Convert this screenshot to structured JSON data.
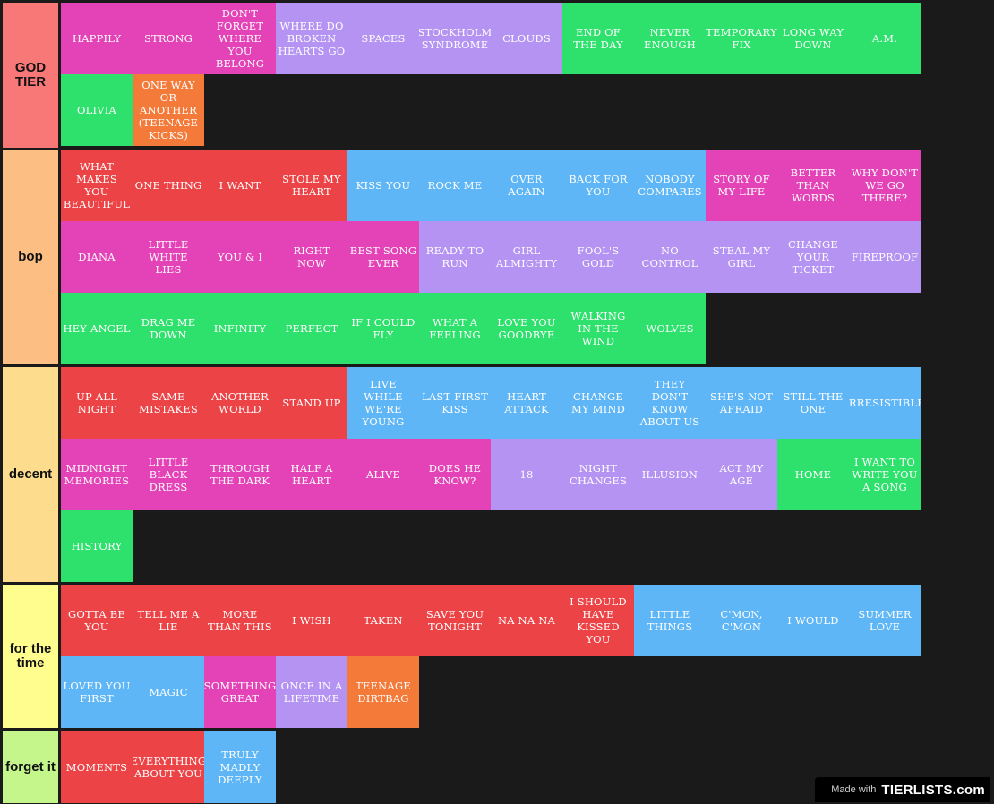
{
  "tiers": [
    {
      "label": "GOD TIER",
      "color": "#f87777",
      "items": [
        {
          "text": "HAPPILY",
          "color": "pink"
        },
        {
          "text": "STRONG",
          "color": "pink"
        },
        {
          "text": "DON'T FORGET WHERE YOU BELONG",
          "color": "pink"
        },
        {
          "text": "WHERE DO BROKEN HEARTS GO",
          "color": "purple"
        },
        {
          "text": "SPACES",
          "color": "purple"
        },
        {
          "text": "STOCKHOLM SYNDROME",
          "color": "purple"
        },
        {
          "text": "CLOUDS",
          "color": "purple"
        },
        {
          "text": "END OF THE DAY",
          "color": "green"
        },
        {
          "text": "NEVER ENOUGH",
          "color": "green"
        },
        {
          "text": "TEMPORARY FIX",
          "color": "green"
        },
        {
          "text": "LONG WAY DOWN",
          "color": "green"
        },
        {
          "text": "A.M.",
          "color": "green"
        },
        {
          "text": "OLIVIA",
          "color": "green"
        },
        {
          "text": "ONE WAY OR ANOTHER (TEENAGE KICKS)",
          "color": "orange"
        }
      ]
    },
    {
      "label": "bop",
      "color": "#fcbe82",
      "items": [
        {
          "text": "WHAT MAKES YOU BEAUTIFUL",
          "color": "red"
        },
        {
          "text": "ONE THING",
          "color": "red"
        },
        {
          "text": "I WANT",
          "color": "red"
        },
        {
          "text": "STOLE MY HEART",
          "color": "red"
        },
        {
          "text": "KISS YOU",
          "color": "blue"
        },
        {
          "text": "ROCK ME",
          "color": "blue"
        },
        {
          "text": "OVER AGAIN",
          "color": "blue"
        },
        {
          "text": "BACK FOR YOU",
          "color": "blue"
        },
        {
          "text": "NOBODY COMPARES",
          "color": "blue"
        },
        {
          "text": "STORY OF MY LIFE",
          "color": "pink"
        },
        {
          "text": "BETTER THAN WORDS",
          "color": "pink"
        },
        {
          "text": "WHY DON'T WE GO THERE?",
          "color": "pink"
        },
        {
          "text": "DIANA",
          "color": "pink"
        },
        {
          "text": "LITTLE WHITE LIES",
          "color": "pink"
        },
        {
          "text": "YOU & I",
          "color": "pink"
        },
        {
          "text": "RIGHT NOW",
          "color": "pink"
        },
        {
          "text": "BEST SONG EVER",
          "color": "pink"
        },
        {
          "text": "READY TO RUN",
          "color": "purple"
        },
        {
          "text": "GIRL ALMIGHTY",
          "color": "purple"
        },
        {
          "text": "FOOL'S GOLD",
          "color": "purple"
        },
        {
          "text": "NO CONTROL",
          "color": "purple"
        },
        {
          "text": "STEAL MY GIRL",
          "color": "purple"
        },
        {
          "text": "CHANGE YOUR TICKET",
          "color": "purple"
        },
        {
          "text": "FIREPROOF",
          "color": "purple"
        },
        {
          "text": "HEY ANGEL",
          "color": "green"
        },
        {
          "text": "DRAG ME DOWN",
          "color": "green"
        },
        {
          "text": "INFINITY",
          "color": "green"
        },
        {
          "text": "PERFECT",
          "color": "green"
        },
        {
          "text": "IF I COULD FLY",
          "color": "green"
        },
        {
          "text": "WHAT A FEELING",
          "color": "green"
        },
        {
          "text": "LOVE YOU GOODBYE",
          "color": "green"
        },
        {
          "text": "WALKING IN THE WIND",
          "color": "green"
        },
        {
          "text": "WOLVES",
          "color": "green"
        }
      ]
    },
    {
      "label": "decent",
      "color": "#fddd8d",
      "items": [
        {
          "text": "UP ALL NIGHT",
          "color": "red"
        },
        {
          "text": "SAME MISTAKES",
          "color": "red"
        },
        {
          "text": "ANOTHER WORLD",
          "color": "red"
        },
        {
          "text": "STAND UP",
          "color": "red"
        },
        {
          "text": "LIVE WHILE WE'RE YOUNG",
          "color": "blue"
        },
        {
          "text": "LAST FIRST KISS",
          "color": "blue"
        },
        {
          "text": "HEART ATTACK",
          "color": "blue"
        },
        {
          "text": "CHANGE MY MIND",
          "color": "blue"
        },
        {
          "text": "THEY DON'T KNOW ABOUT US",
          "color": "blue"
        },
        {
          "text": "SHE'S NOT AFRAID",
          "color": "blue"
        },
        {
          "text": "STILL THE ONE",
          "color": "blue"
        },
        {
          "text": "IRRESISTIBLE",
          "color": "blue"
        },
        {
          "text": "MIDNIGHT MEMORIES",
          "color": "pink"
        },
        {
          "text": "LITTLE BLACK DRESS",
          "color": "pink"
        },
        {
          "text": "THROUGH THE DARK",
          "color": "pink"
        },
        {
          "text": "HALF A HEART",
          "color": "pink"
        },
        {
          "text": "ALIVE",
          "color": "pink"
        },
        {
          "text": "DOES HE KNOW?",
          "color": "pink"
        },
        {
          "text": "18",
          "color": "purple"
        },
        {
          "text": "NIGHT CHANGES",
          "color": "purple"
        },
        {
          "text": "ILLUSION",
          "color": "purple"
        },
        {
          "text": "ACT MY AGE",
          "color": "purple"
        },
        {
          "text": "HOME",
          "color": "green"
        },
        {
          "text": "I WANT TO WRITE YOU A SONG",
          "color": "green"
        },
        {
          "text": "HISTORY",
          "color": "green"
        }
      ]
    },
    {
      "label": "for the time",
      "color": "#fefd8e",
      "items": [
        {
          "text": "GOTTA BE YOU",
          "color": "red"
        },
        {
          "text": "TELL ME A LIE",
          "color": "red"
        },
        {
          "text": "MORE THAN THIS",
          "color": "red"
        },
        {
          "text": "I WISH",
          "color": "red"
        },
        {
          "text": "TAKEN",
          "color": "red"
        },
        {
          "text": "SAVE YOU TONIGHT",
          "color": "red"
        },
        {
          "text": "NA NA NA",
          "color": "red"
        },
        {
          "text": "I SHOULD HAVE KISSED YOU",
          "color": "red"
        },
        {
          "text": "LITTLE THINGS",
          "color": "blue"
        },
        {
          "text": "C'MON, C'MON",
          "color": "blue"
        },
        {
          "text": "I WOULD",
          "color": "blue"
        },
        {
          "text": "SUMMER LOVE",
          "color": "blue"
        },
        {
          "text": "LOVED YOU FIRST",
          "color": "blue"
        },
        {
          "text": "MAGIC",
          "color": "blue"
        },
        {
          "text": "SOMETHING GREAT",
          "color": "pink"
        },
        {
          "text": "ONCE IN A LIFETIME",
          "color": "purple"
        },
        {
          "text": "TEENAGE DIRTBAG",
          "color": "orange"
        }
      ]
    },
    {
      "label": "forget it",
      "color": "#c4f68c",
      "items": [
        {
          "text": "MOMENTS",
          "color": "red"
        },
        {
          "text": "EVERYTHING ABOUT YOU",
          "color": "red"
        },
        {
          "text": "TRULY MADLY DEEPLY",
          "color": "blue"
        }
      ]
    }
  ],
  "watermark": {
    "made_with": "Made with",
    "logo": "TIERLISTS.com"
  }
}
